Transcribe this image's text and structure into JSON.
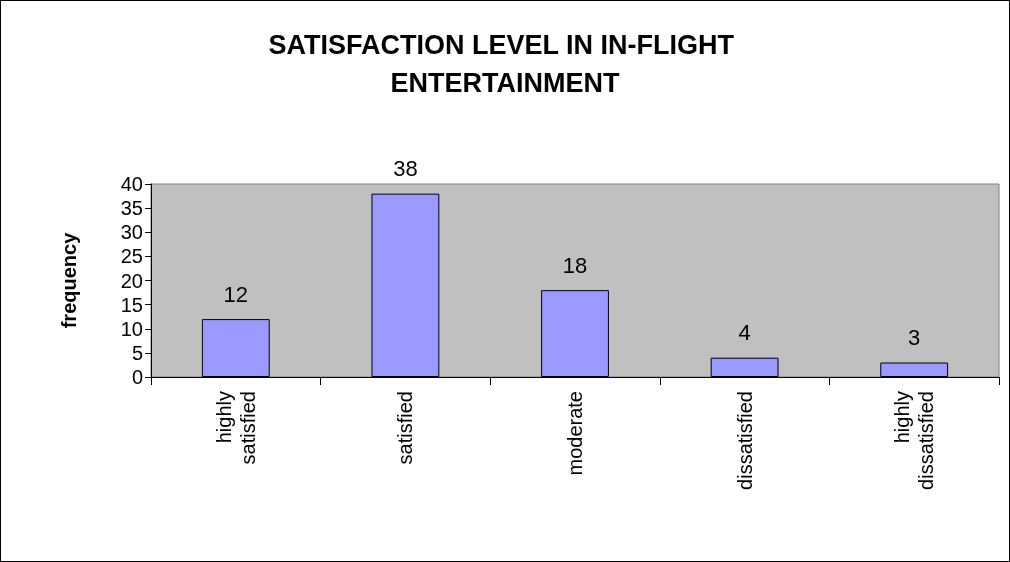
{
  "chart_data": {
    "type": "bar",
    "title": "SATISFACTION LEVEL IN IN-FLIGHT ENTERTAINMENT",
    "ylabel": "frequency",
    "categories": [
      "highly satisfied",
      "satisfied",
      "moderate",
      "dissatisfied",
      "highly dissatisfied"
    ],
    "values": [
      12,
      38,
      18,
      4,
      3
    ],
    "color": "#9999ff",
    "ylim": [
      0,
      40
    ],
    "yticks": [
      0,
      5,
      10,
      15,
      20,
      25,
      30,
      35,
      40
    ],
    "grid": false,
    "data_labels": true
  }
}
